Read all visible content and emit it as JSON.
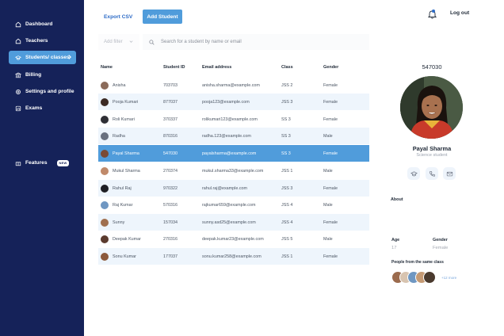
{
  "sidebar": {
    "items": [
      {
        "label": "Dashboard",
        "icon": "home-icon"
      },
      {
        "label": "Teachers",
        "icon": "home-icon"
      },
      {
        "label": "Students/ classes",
        "icon": "graduation-cap-icon",
        "active": true
      },
      {
        "label": "Billing",
        "icon": "bank-icon"
      },
      {
        "label": "Settings and profile",
        "icon": "gear-icon"
      },
      {
        "label": "Exams",
        "icon": "analytics-icon"
      }
    ],
    "features": {
      "label": "Features",
      "badge": "NEW",
      "icon": "gift-icon"
    }
  },
  "toolbar": {
    "export_label": "Export CSV",
    "add_label": "Add Student",
    "logout_label": "Log out"
  },
  "filter": {
    "label": "Add filter"
  },
  "search": {
    "placeholder": "Search for a student by name or email"
  },
  "table": {
    "headers": [
      "Name",
      "Student ID",
      "Email address",
      "Class",
      "Gender"
    ],
    "rows": [
      {
        "name": "Anisha",
        "id": "703703",
        "email": "anisha.sharma@example.com",
        "class": "JSS 2",
        "gender": "Female",
        "avatar_color": "#8b6b5a"
      },
      {
        "name": "Pooja Kumari",
        "id": "877037",
        "email": "pooja123@example.com",
        "class": "JSS 3",
        "gender": "Female",
        "avatar_color": "#3b2a24"
      },
      {
        "name": "Roli Kumari",
        "id": "370337",
        "email": "rolikumari123@example.com",
        "class": "SS 3",
        "gender": "Female",
        "avatar_color": "#2f2f35"
      },
      {
        "name": "Radha",
        "id": "870316",
        "email": "radha.123@example.com",
        "class": "SS 3",
        "gender": "Male",
        "avatar_color": "#6b7280"
      },
      {
        "name": "Payal Sharma",
        "id": "547030",
        "email": "payalsharma@example.com",
        "class": "SS 3",
        "gender": "Female",
        "avatar_color": "#7a4a35",
        "selected": true
      },
      {
        "name": "Mukul Sharma",
        "id": "270374",
        "email": "mukul.sharma33@example.com",
        "class": "JSS 1",
        "gender": "Male",
        "avatar_color": "#c08a6a"
      },
      {
        "name": "Rahul Raj",
        "id": "970322",
        "email": "rahul.raj@example.com",
        "class": "JSS 3",
        "gender": "Female",
        "avatar_color": "#1f1f24"
      },
      {
        "name": "Raj Kumar",
        "id": "570316",
        "email": "rajkumar659@example.com",
        "class": "JSS 4",
        "gender": "Male",
        "avatar_color": "#6f97c2"
      },
      {
        "name": "Sunny",
        "id": "157034",
        "email": "sunny.asd25@example.com",
        "class": "JSS 4",
        "gender": "Female",
        "avatar_color": "#a0704f"
      },
      {
        "name": "Deepak Kumar",
        "id": "270316",
        "email": "deepak.kumar23@example.com",
        "class": "JSS 5",
        "gender": "Male",
        "avatar_color": "#5b3b2e"
      },
      {
        "name": "Sonu Kumar",
        "id": "177037",
        "email": "sonu.kumar258@example.com",
        "class": "JSS 1",
        "gender": "Female",
        "avatar_color": "#8c5a3c"
      }
    ]
  },
  "profile": {
    "id": "547030",
    "name": "Payal Sharma",
    "role": "Science student",
    "about_label": "About",
    "age_label": "Age",
    "age_value": "17",
    "gender_label": "Gender",
    "gender_value": "Female",
    "classmates_label": "People from the same class",
    "more_label": "+12 more"
  },
  "colors": {
    "sidebar_bg": "#152259",
    "accent": "#509cdb",
    "link": "#2e6cc7",
    "row_alt": "#eef5fc"
  }
}
